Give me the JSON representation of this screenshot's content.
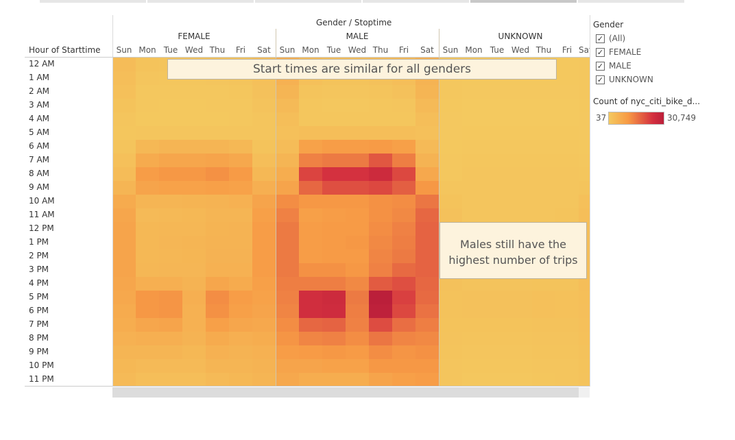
{
  "header": {
    "row_header": "Hour of Starttime",
    "col_header": "Gender / Stoptime",
    "groups": [
      "FEMALE",
      "MALE",
      "UNKNOWN"
    ],
    "days": [
      "Sun",
      "Mon",
      "Tue",
      "Wed",
      "Thu",
      "Fri",
      "Sat"
    ]
  },
  "annotations": {
    "top": "Start times are similar for all genders",
    "right": "Males still have the highest number of trips"
  },
  "legend": {
    "title": "Gender",
    "items": [
      {
        "label": "(All)",
        "checked": "✓"
      },
      {
        "label": "FEMALE",
        "checked": "✓"
      },
      {
        "label": "MALE",
        "checked": "✓"
      },
      {
        "label": "UNKNOWN",
        "checked": "✓"
      }
    ],
    "color_title": "Count of nyc_citi_bike_d...",
    "min_label": "37",
    "max_label": "30,749",
    "colors": [
      "#f4c95f",
      "#f79a45",
      "#d4303f",
      "#bb1f3a"
    ]
  },
  "chart_data": {
    "type": "heatmap",
    "title": "",
    "xlabel": "Gender / Stoptime",
    "ylabel": "Hour of Starttime",
    "hours": [
      "12 AM",
      "1 AM",
      "2 AM",
      "3 AM",
      "4 AM",
      "5 AM",
      "6 AM",
      "7 AM",
      "8 AM",
      "9 AM",
      "10 AM",
      "11 AM",
      "12 PM",
      "1 PM",
      "2 PM",
      "3 PM",
      "4 PM",
      "5 PM",
      "6 PM",
      "7 PM",
      "8 PM",
      "9 PM",
      "10 PM",
      "11 PM"
    ],
    "value_range": [
      37,
      30749
    ],
    "series": [
      {
        "name": "FEMALE",
        "values": [
          [
            3000,
            1500,
            1200,
            1200,
            1300,
            1500,
            2500
          ],
          [
            2500,
            1000,
            800,
            800,
            900,
            1200,
            2200
          ],
          [
            2000,
            600,
            500,
            500,
            600,
            800,
            1800
          ],
          [
            1500,
            400,
            300,
            300,
            400,
            500,
            1400
          ],
          [
            1000,
            300,
            300,
            300,
            300,
            400,
            1000
          ],
          [
            800,
            1000,
            1000,
            1000,
            1000,
            1000,
            900
          ],
          [
            1200,
            4000,
            4500,
            4500,
            4500,
            4000,
            1500
          ],
          [
            2000,
            7000,
            8000,
            8000,
            8500,
            7500,
            2500
          ],
          [
            3000,
            10000,
            11000,
            11000,
            12000,
            10500,
            4000
          ],
          [
            4500,
            8500,
            9000,
            9000,
            9500,
            9000,
            6000
          ],
          [
            7000,
            4500,
            4500,
            4800,
            5000,
            5500,
            8500
          ],
          [
            8000,
            3500,
            3800,
            4000,
            4500,
            4500,
            9500
          ],
          [
            8500,
            4000,
            4200,
            4200,
            4800,
            5000,
            10000
          ],
          [
            8500,
            4000,
            4300,
            4500,
            5000,
            5000,
            10000
          ],
          [
            8500,
            4000,
            4200,
            4400,
            5200,
            5200,
            10000
          ],
          [
            8500,
            4200,
            4300,
            4300,
            5500,
            5500,
            10000
          ],
          [
            8000,
            6000,
            6000,
            5000,
            8000,
            7000,
            9500
          ],
          [
            7500,
            11000,
            11500,
            6000,
            12500,
            10000,
            9000
          ],
          [
            7000,
            11000,
            11500,
            5500,
            12000,
            9500,
            8500
          ],
          [
            6500,
            8000,
            8500,
            5500,
            9500,
            8000,
            7500
          ],
          [
            5500,
            6000,
            6000,
            5000,
            7000,
            6000,
            6500
          ],
          [
            4500,
            4500,
            4500,
            4000,
            5500,
            5000,
            5500
          ],
          [
            4000,
            3500,
            3500,
            3500,
            4500,
            4500,
            5000
          ],
          [
            3500,
            2500,
            2500,
            2500,
            3500,
            4000,
            4500
          ]
        ]
      },
      {
        "name": "MALE",
        "values": [
          [
            6000,
            3000,
            2500,
            2500,
            3000,
            3500,
            5500
          ],
          [
            5500,
            2000,
            1500,
            1500,
            1800,
            2500,
            5000
          ],
          [
            4500,
            1200,
            900,
            900,
            1200,
            1800,
            4500
          ],
          [
            3500,
            800,
            600,
            600,
            800,
            1000,
            3500
          ],
          [
            2500,
            700,
            700,
            700,
            700,
            800,
            2500
          ],
          [
            2000,
            2500,
            2600,
            2600,
            2600,
            2500,
            2000
          ],
          [
            3000,
            9000,
            10000,
            10000,
            10500,
            9500,
            3500
          ],
          [
            4500,
            14000,
            15000,
            15000,
            19500,
            14500,
            5000
          ],
          [
            6500,
            22000,
            24500,
            24500,
            26500,
            21500,
            7500
          ],
          [
            8500,
            17500,
            20500,
            20500,
            21500,
            18500,
            11000
          ],
          [
            12500,
            11000,
            11000,
            11000,
            12000,
            12500,
            15500
          ],
          [
            14000,
            9500,
            10000,
            10500,
            12000,
            13000,
            17500
          ],
          [
            15000,
            10000,
            10500,
            10500,
            12500,
            14000,
            18000
          ],
          [
            15000,
            10000,
            10500,
            11000,
            13000,
            14500,
            18000
          ],
          [
            15000,
            10000,
            10500,
            10500,
            13500,
            15000,
            18000
          ],
          [
            15000,
            12000,
            12000,
            11000,
            14000,
            17000,
            18000
          ],
          [
            14500,
            14500,
            14500,
            13000,
            19000,
            20500,
            17500
          ],
          [
            14000,
            25500,
            26500,
            15000,
            30749,
            22500,
            17000
          ],
          [
            13500,
            25500,
            26000,
            14500,
            30000,
            21500,
            16000
          ],
          [
            12500,
            17500,
            18000,
            14000,
            21000,
            16500,
            14500
          ],
          [
            11500,
            13500,
            14000,
            12500,
            15500,
            13500,
            13000
          ],
          [
            10000,
            10500,
            11000,
            10500,
            12500,
            11500,
            12000
          ],
          [
            8500,
            8500,
            9000,
            9000,
            11000,
            11000,
            11000
          ],
          [
            7500,
            6500,
            6500,
            6500,
            8500,
            9500,
            10000
          ]
        ]
      },
      {
        "name": "UNKNOWN",
        "values": [
          [
            500,
            300,
            300,
            300,
            300,
            300,
            500
          ],
          [
            500,
            300,
            300,
            300,
            300,
            300,
            500
          ],
          [
            400,
            200,
            200,
            200,
            200,
            200,
            400
          ],
          [
            300,
            100,
            100,
            100,
            100,
            100,
            300
          ],
          [
            200,
            100,
            100,
            100,
            100,
            100,
            200
          ],
          [
            200,
            300,
            300,
            300,
            300,
            300,
            200
          ],
          [
            300,
            500,
            500,
            500,
            500,
            500,
            300
          ],
          [
            400,
            700,
            700,
            700,
            700,
            700,
            500
          ],
          [
            600,
            900,
            900,
            900,
            900,
            900,
            700
          ],
          [
            900,
            900,
            900,
            900,
            900,
            900,
            1200
          ],
          [
            1500,
            900,
            900,
            900,
            900,
            1000,
            2200
          ],
          [
            1800,
            900,
            900,
            900,
            1000,
            1100,
            2500
          ],
          [
            1800,
            900,
            900,
            900,
            1000,
            1100,
            2600
          ],
          [
            1800,
            900,
            900,
            900,
            1000,
            1100,
            2600
          ],
          [
            1800,
            900,
            900,
            900,
            1000,
            1100,
            2600
          ],
          [
            1800,
            1000,
            1000,
            1000,
            1100,
            1200,
            2600
          ],
          [
            1800,
            1300,
            1300,
            1300,
            1500,
            1500,
            2500
          ],
          [
            1700,
            1800,
            1800,
            1800,
            2100,
            1900,
            2400
          ],
          [
            1600,
            1800,
            1800,
            1800,
            2100,
            1900,
            2300
          ],
          [
            1500,
            1500,
            1500,
            1500,
            1700,
            1600,
            2100
          ],
          [
            1400,
            1200,
            1200,
            1200,
            1400,
            1300,
            1900
          ],
          [
            1200,
            1000,
            1000,
            1000,
            1200,
            1100,
            1700
          ],
          [
            1000,
            800,
            800,
            800,
            1000,
            1000,
            1500
          ],
          [
            900,
            600,
            600,
            600,
            800,
            900,
            1400
          ]
        ]
      }
    ]
  }
}
